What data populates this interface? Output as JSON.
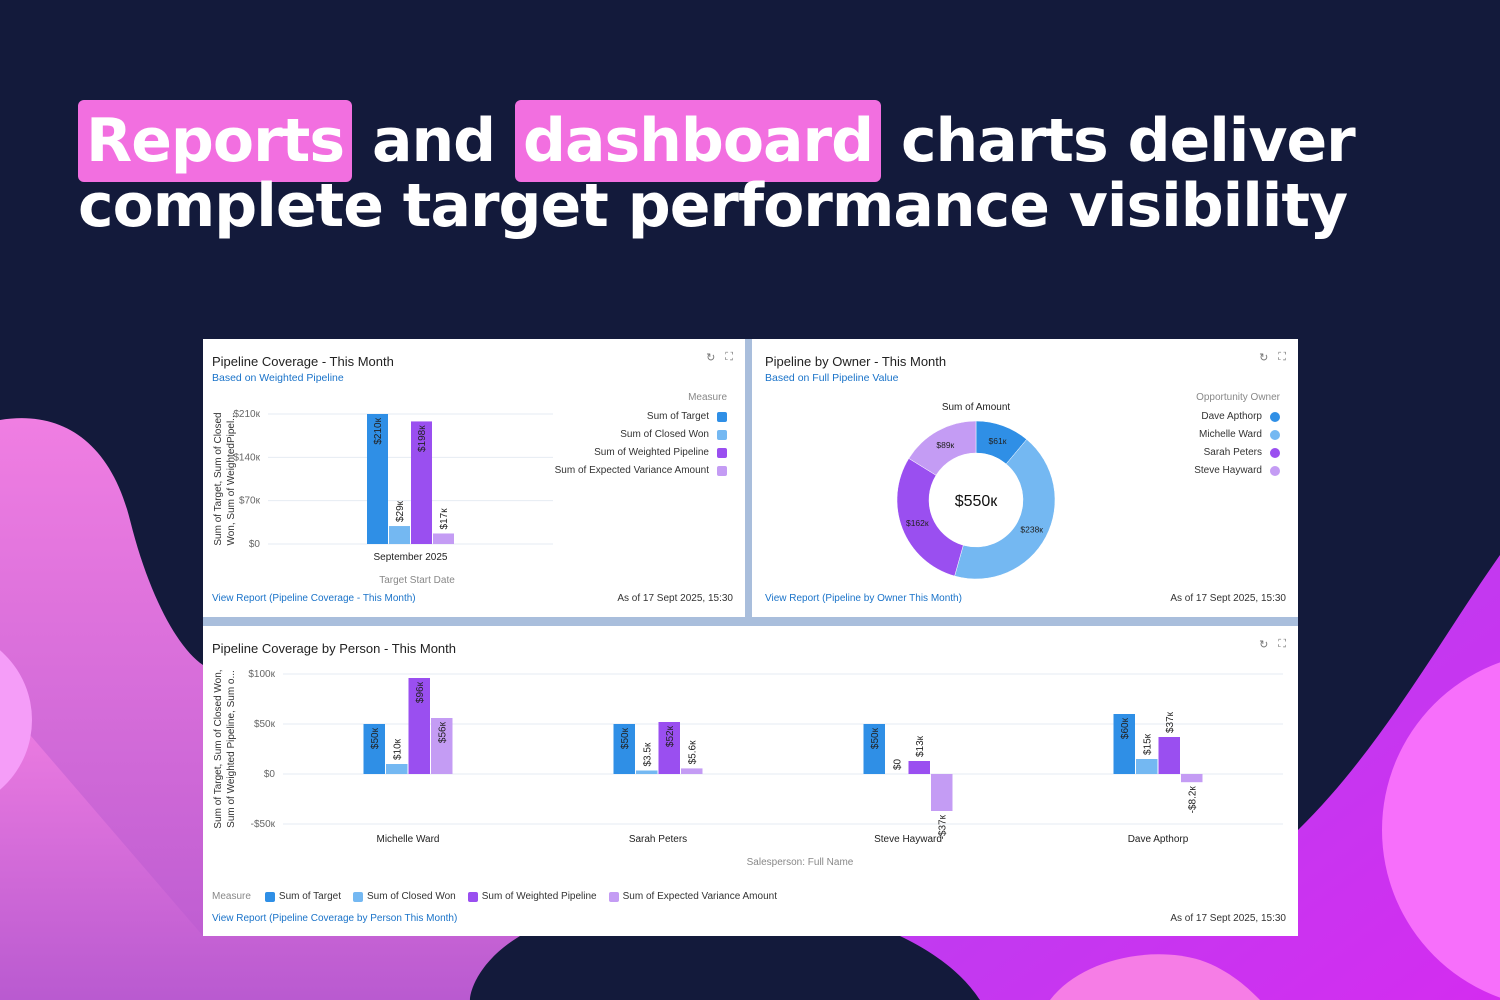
{
  "headline": {
    "line1": [
      {
        "text": "Reports",
        "highlight": true
      },
      {
        "text": " and ",
        "highlight": false
      },
      {
        "text": "dashboard",
        "highlight": true
      },
      {
        "text": " charts deliver",
        "highlight": false
      }
    ],
    "line2": "complete target performance visibility"
  },
  "colors": {
    "background": "#131a3b",
    "highlight": "#f26fe0",
    "target": "#2f8fe6",
    "closed_won": "#74b8f2",
    "weighted_pipeline": "#9a4ff0",
    "expected_variance": "#c49cf4",
    "link": "#1a73c9"
  },
  "icons": {
    "refresh": "refresh-icon",
    "expand": "expand-icon"
  },
  "cards": {
    "coverage": {
      "title": "Pipeline Coverage - This Month",
      "subtitle": "Based on Weighted Pipeline",
      "link": "View Report (Pipeline Coverage - This Month)",
      "timestamp": "As of 17 Sept 2025, 15:30"
    },
    "owner": {
      "title": "Pipeline by Owner - This Month",
      "subtitle": "Based on Full Pipeline Value",
      "link": "View Report (Pipeline by Owner This Month)",
      "timestamp": "As of 17 Sept 2025, 15:30"
    },
    "person": {
      "title": "Pipeline Coverage by Person - This Month",
      "link": "View Report (Pipeline Coverage by Person This Month)",
      "timestamp": "As of 17 Sept 2025, 15:30"
    }
  },
  "chart_data": [
    {
      "type": "bar",
      "title": "Pipeline Coverage - This Month",
      "xlabel": "Target Start Date",
      "ylabel_line1": "Sum of Target, Sum of Closed",
      "ylabel_line2": "Won, Sum of WeightedPipel...",
      "categories": [
        "September 2025"
      ],
      "yticks": [
        "$0",
        "$70к",
        "$140к",
        "$210к"
      ],
      "ytick_values": [
        0,
        70000,
        140000,
        210000
      ],
      "ylim": [
        0,
        210000
      ],
      "legend_title": "Measure",
      "legend_position": "right",
      "series": [
        {
          "name": "Sum of Target",
          "values": [
            210000
          ],
          "labels": [
            "$210к"
          ]
        },
        {
          "name": "Sum of Closed Won",
          "values": [
            29000
          ],
          "labels": [
            "$29к"
          ]
        },
        {
          "name": "Sum of Weighted Pipeline",
          "values": [
            198000
          ],
          "labels": [
            "$198к"
          ]
        },
        {
          "name": "Sum of Expected Variance Amount",
          "values": [
            17000
          ],
          "labels": [
            "$17к"
          ]
        }
      ]
    },
    {
      "type": "pie",
      "title": "Sum of Amount",
      "center_label": "$550к",
      "legend_title": "Opportunity Owner",
      "legend_position": "right",
      "slices": [
        {
          "name": "Dave Apthorp",
          "value": 61000,
          "label": "$61к"
        },
        {
          "name": "Michelle Ward",
          "value": 238000,
          "label": "$238к"
        },
        {
          "name": "Sarah Peters",
          "value": 162000,
          "label": "$162к"
        },
        {
          "name": "Steve Hayward",
          "value": 89000,
          "label": "$89к"
        }
      ]
    },
    {
      "type": "bar",
      "title": "Pipeline Coverage by Person - This Month",
      "xlabel": "Salesperson: Full Name",
      "ylabel_line1": "Sum of Target, Sum of Closed Won,",
      "ylabel_line2": "Sum of Weighted Pipeline, Sum o...",
      "categories": [
        "Michelle Ward",
        "Sarah Peters",
        "Steve Hayward",
        "Dave Apthorp"
      ],
      "yticks": [
        "-$50к",
        "$0",
        "$50к",
        "$100к"
      ],
      "ytick_values": [
        -50000,
        0,
        50000,
        100000
      ],
      "ylim": [
        -50000,
        100000
      ],
      "legend_title": "Measure",
      "legend_position": "bottom",
      "series": [
        {
          "name": "Sum of Target",
          "values": [
            50000,
            50000,
            50000,
            60000
          ],
          "labels": [
            "$50к",
            "$50к",
            "$50к",
            "$60к"
          ]
        },
        {
          "name": "Sum of Closed Won",
          "values": [
            10000,
            3500,
            0,
            15000
          ],
          "labels": [
            "$10к",
            "$3.5к",
            "$0",
            "$15к"
          ]
        },
        {
          "name": "Sum of Weighted Pipeline",
          "values": [
            96000,
            52000,
            13000,
            37000
          ],
          "labels": [
            "$96к",
            "$52к",
            "$13к",
            "$37к"
          ]
        },
        {
          "name": "Sum of Expected Variance Amount",
          "values": [
            56000,
            5600,
            -37000,
            -8200
          ],
          "labels": [
            "$56к",
            "$5.6к",
            "-$37к",
            "-$8.2к"
          ]
        }
      ]
    }
  ]
}
